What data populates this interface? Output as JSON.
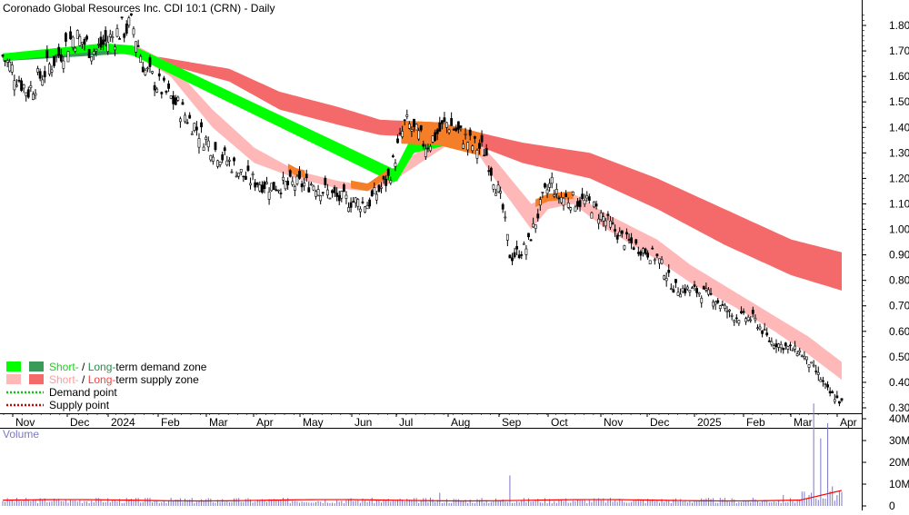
{
  "chart_data": [
    {
      "type": "candlestick",
      "title": "Coronado Global Resources Inc. CDI 10:1 (CRN) - Daily",
      "ylim": [
        0.27,
        1.87
      ],
      "y_ticks": [
        "1.80",
        "1.70",
        "1.60",
        "1.50",
        "1.40",
        "1.30",
        "1.20",
        "1.10",
        "1.00",
        "0.90",
        "0.80",
        "0.70",
        "0.60",
        "0.50",
        "0.40",
        "0.30"
      ],
      "x_ticks": [
        "Nov",
        "Dec",
        "2024",
        "Feb",
        "Mar",
        "Apr",
        "May",
        "Jun",
        "Jul",
        "Aug",
        "Sep",
        "Oct",
        "Nov",
        "Dec",
        "2025",
        "Feb",
        "Mar",
        "Apr"
      ],
      "price_path": [
        {
          "t": 0,
          "p": 1.68
        },
        {
          "t": 0.03,
          "p": 1.54
        },
        {
          "t": 0.06,
          "p": 1.66
        },
        {
          "t": 0.085,
          "p": 1.76
        },
        {
          "t": 0.11,
          "p": 1.7
        },
        {
          "t": 0.14,
          "p": 1.78
        },
        {
          "t": 0.155,
          "p": 1.8
        },
        {
          "t": 0.17,
          "p": 1.62
        },
        {
          "t": 0.21,
          "p": 1.48
        },
        {
          "t": 0.25,
          "p": 1.32
        },
        {
          "t": 0.275,
          "p": 1.25
        },
        {
          "t": 0.29,
          "p": 1.2
        },
        {
          "t": 0.32,
          "p": 1.17
        },
        {
          "t": 0.37,
          "p": 1.18
        },
        {
          "t": 0.4,
          "p": 1.12
        },
        {
          "t": 0.435,
          "p": 1.1
        },
        {
          "t": 0.46,
          "p": 1.2
        },
        {
          "t": 0.48,
          "p": 1.42
        },
        {
          "t": 0.505,
          "p": 1.33
        },
        {
          "t": 0.53,
          "p": 1.42
        },
        {
          "t": 0.56,
          "p": 1.33
        },
        {
          "t": 0.575,
          "p": 1.31
        },
        {
          "t": 0.595,
          "p": 1.1
        },
        {
          "t": 0.605,
          "p": 0.89
        },
        {
          "t": 0.625,
          "p": 0.93
        },
        {
          "t": 0.645,
          "p": 1.13
        },
        {
          "t": 0.655,
          "p": 1.19
        },
        {
          "t": 0.66,
          "p": 1.13
        },
        {
          "t": 0.7,
          "p": 1.1
        },
        {
          "t": 0.74,
          "p": 0.96
        },
        {
          "t": 0.78,
          "p": 0.89
        },
        {
          "t": 0.8,
          "p": 0.77
        },
        {
          "t": 0.825,
          "p": 0.76
        },
        {
          "t": 0.845,
          "p": 0.74
        },
        {
          "t": 0.87,
          "p": 0.66
        },
        {
          "t": 0.895,
          "p": 0.65
        },
        {
          "t": 0.915,
          "p": 0.56
        },
        {
          "t": 0.95,
          "p": 0.52
        },
        {
          "t": 0.97,
          "p": 0.44
        },
        {
          "t": 0.985,
          "p": 0.36
        },
        {
          "t": 1.0,
          "p": 0.32
        }
      ],
      "long_term_zone": [
        {
          "t": 0,
          "hi": 1.69,
          "lo": 1.66
        },
        {
          "t": 0.15,
          "hi": 1.72,
          "lo": 1.69
        },
        {
          "t": 0.18,
          "hi": 1.68,
          "lo": 1.66
        },
        {
          "t": 0.27,
          "hi": 1.63,
          "lo": 1.58
        },
        {
          "t": 0.33,
          "hi": 1.54,
          "lo": 1.47
        },
        {
          "t": 0.4,
          "hi": 1.48,
          "lo": 1.41
        },
        {
          "t": 0.45,
          "hi": 1.43,
          "lo": 1.37
        },
        {
          "t": 0.52,
          "hi": 1.42,
          "lo": 1.36
        },
        {
          "t": 0.58,
          "hi": 1.37,
          "lo": 1.31
        },
        {
          "t": 0.62,
          "hi": 1.34,
          "lo": 1.26
        },
        {
          "t": 0.7,
          "hi": 1.3,
          "lo": 1.2
        },
        {
          "t": 0.78,
          "hi": 1.2,
          "lo": 1.08
        },
        {
          "t": 0.86,
          "hi": 1.08,
          "lo": 0.94
        },
        {
          "t": 0.94,
          "hi": 0.96,
          "lo": 0.82
        },
        {
          "t": 1.0,
          "hi": 0.91,
          "lo": 0.76
        }
      ],
      "short_term_zone": [
        {
          "t": 0,
          "hi": 1.69,
          "lo": 1.66
        },
        {
          "t": 0.12,
          "hi": 1.73,
          "lo": 1.7
        },
        {
          "t": 0.16,
          "hi": 1.72,
          "lo": 1.68
        },
        {
          "t": 0.2,
          "hi": 1.65,
          "lo": 1.6
        },
        {
          "t": 0.25,
          "hi": 1.47,
          "lo": 1.4
        },
        {
          "t": 0.3,
          "hi": 1.32,
          "lo": 1.26
        },
        {
          "t": 0.35,
          "hi": 1.23,
          "lo": 1.2
        },
        {
          "t": 0.4,
          "hi": 1.19,
          "lo": 1.16
        },
        {
          "t": 0.435,
          "hi": 1.17,
          "lo": 1.15
        },
        {
          "t": 0.47,
          "hi": 1.25,
          "lo": 1.19
        },
        {
          "t": 0.49,
          "hi": 1.38,
          "lo": 1.3
        },
        {
          "t": 0.53,
          "hi": 1.38,
          "lo": 1.33
        },
        {
          "t": 0.56,
          "hi": 1.37,
          "lo": 1.33
        },
        {
          "t": 0.59,
          "hi": 1.26,
          "lo": 1.18
        },
        {
          "t": 0.63,
          "hi": 1.1,
          "lo": 1.0
        },
        {
          "t": 0.65,
          "hi": 1.13,
          "lo": 1.08
        },
        {
          "t": 0.68,
          "hi": 1.14,
          "lo": 1.1
        },
        {
          "t": 0.72,
          "hi": 1.06,
          "lo": 1.0
        },
        {
          "t": 0.78,
          "hi": 0.96,
          "lo": 0.88
        },
        {
          "t": 0.82,
          "hi": 0.86,
          "lo": 0.79
        },
        {
          "t": 0.87,
          "hi": 0.76,
          "lo": 0.7
        },
        {
          "t": 0.92,
          "hi": 0.66,
          "lo": 0.6
        },
        {
          "t": 0.96,
          "hi": 0.58,
          "lo": 0.51
        },
        {
          "t": 1.0,
          "hi": 0.48,
          "lo": 0.41
        }
      ],
      "volume_spikes": [
        {
          "t": 0.52,
          "m": 6
        },
        {
          "t": 0.604,
          "m": 14
        },
        {
          "t": 0.93,
          "m": 5
        },
        {
          "t": 0.967,
          "m": 47
        },
        {
          "t": 0.975,
          "m": 31
        },
        {
          "t": 0.984,
          "m": 38
        },
        {
          "t": 0.99,
          "m": 9
        },
        {
          "t": 0.997,
          "m": 7
        }
      ]
    },
    {
      "type": "bar",
      "title": "Volume",
      "ylim": [
        0,
        48
      ],
      "y_ticks": [
        "40M",
        "30M",
        "20M",
        "10M",
        "0"
      ]
    }
  ],
  "legend": [
    {
      "swatches": [
        "#00ff00",
        "#3a9a5a"
      ],
      "short": "Short-",
      "sep": " / ",
      "long": "Long-",
      "rest": "term demand zone",
      "short_color": "#22cc22",
      "long_color": "#2a8a4a"
    },
    {
      "swatches": [
        "#ffb8b8",
        "#f46a6a"
      ],
      "short": "Short-",
      "sep": " / ",
      "long": "Long-",
      "rest": "term supply zone",
      "short_color": "#ff9c9c",
      "long_color": "#ee4444"
    },
    {
      "line": "dotted",
      "color": "#00cc00",
      "label": "Demand point"
    },
    {
      "line": "dotted",
      "color": "#cc0000",
      "label": "Supply point"
    }
  ],
  "colors": {
    "demand_short": "#00ff00",
    "demand_long": "#3a9a5a",
    "supply_short": "#ffb8b8",
    "supply_long": "#f46a6a",
    "overlap": "#f57f28",
    "candle": "#000000",
    "volume": "#7b77c8",
    "volume_ma": "#ff0000",
    "grid": "#000000"
  }
}
